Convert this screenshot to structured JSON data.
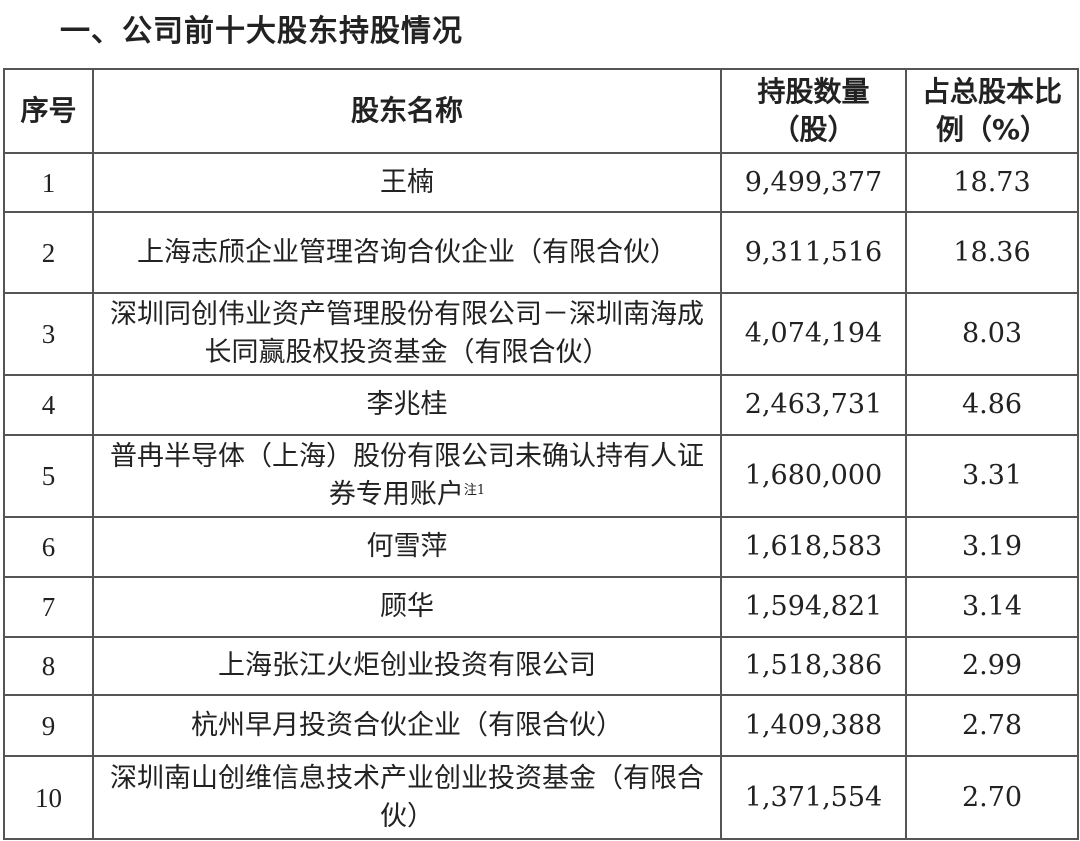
{
  "title": "一、公司前十大股东持股情况",
  "headers": {
    "no": "序号",
    "name": "股东名称",
    "shares": "持股数量（股）",
    "ratio": "占总股本比例（%）"
  },
  "rows": [
    {
      "no": "1",
      "name": "王楠",
      "note": "",
      "shares": "9,499,377",
      "ratio": "18.73"
    },
    {
      "no": "2",
      "name": "上海志颀企业管理咨询合伙企业（有限合伙）",
      "note": "",
      "shares": "9,311,516",
      "ratio": "18.36"
    },
    {
      "no": "3",
      "name": "深圳同创伟业资产管理股份有限公司－深圳南海成长同赢股权投资基金（有限合伙）",
      "note": "",
      "shares": "4,074,194",
      "ratio": "8.03"
    },
    {
      "no": "4",
      "name": "李兆桂",
      "note": "",
      "shares": "2,463,731",
      "ratio": "4.86"
    },
    {
      "no": "5",
      "name": "普冉半导体（上海）股份有限公司未确认持有人证券专用账户",
      "note": "注1",
      "shares": "1,680,000",
      "ratio": "3.31"
    },
    {
      "no": "6",
      "name": "何雪萍",
      "note": "",
      "shares": "1,618,583",
      "ratio": "3.19"
    },
    {
      "no": "7",
      "name": "顾华",
      "note": "",
      "shares": "1,594,821",
      "ratio": "3.14"
    },
    {
      "no": "8",
      "name": "上海张江火炬创业投资有限公司",
      "note": "",
      "shares": "1,518,386",
      "ratio": "2.99"
    },
    {
      "no": "9",
      "name": "杭州早月投资合伙企业（有限合伙）",
      "note": "",
      "shares": "1,409,388",
      "ratio": "2.78"
    },
    {
      "no": "10",
      "name": "深圳南山创维信息技术产业创业投资基金（有限合伙）",
      "note": "",
      "shares": "1,371,554",
      "ratio": "2.70"
    }
  ]
}
